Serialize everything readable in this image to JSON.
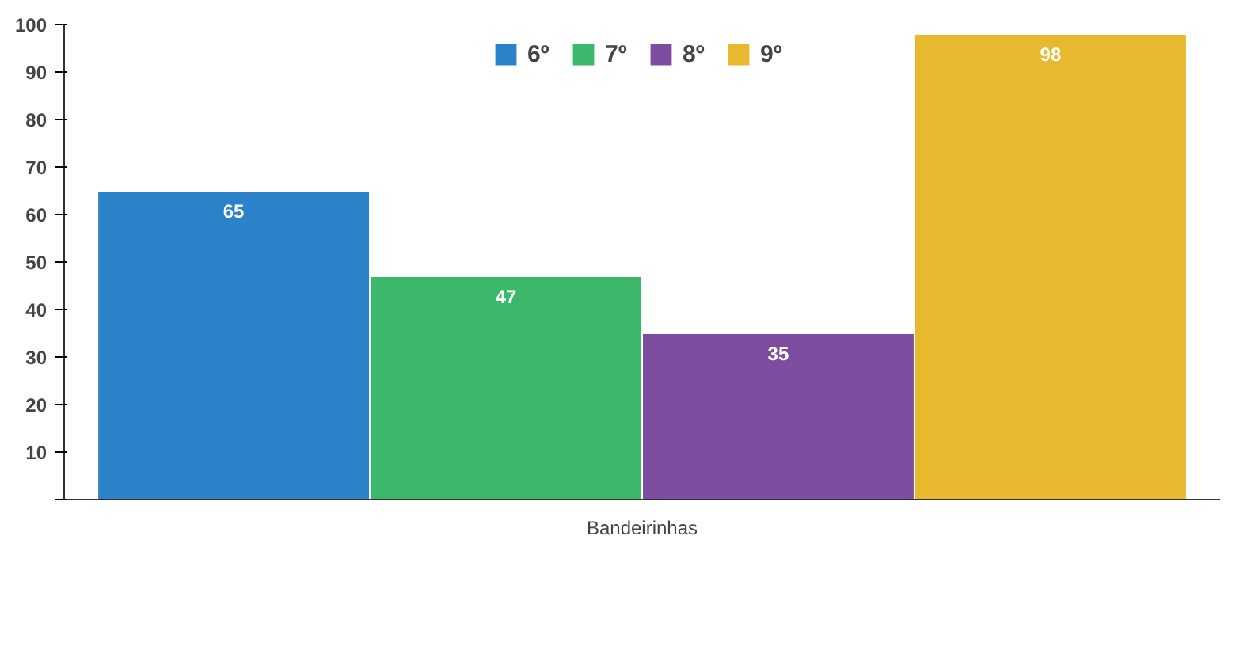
{
  "chart_data": {
    "type": "bar",
    "categories": [
      "Bandeirinhas"
    ],
    "series": [
      {
        "name": "6º",
        "color": "#2b82c9",
        "values": [
          65
        ]
      },
      {
        "name": "7º",
        "color": "#3cb86a",
        "values": [
          47
        ]
      },
      {
        "name": "8º",
        "color": "#7d4ea0",
        "values": [
          35
        ]
      },
      {
        "name": "9º",
        "color": "#e8b92e",
        "values": [
          98
        ]
      }
    ],
    "ylim": [
      0,
      100
    ],
    "yticks": [
      {
        "value": 0,
        "label": null
      },
      10,
      20,
      30,
      40,
      50,
      60,
      70,
      80,
      90,
      100
    ],
    "data_labels": true,
    "legend": "top",
    "grid": false
  }
}
